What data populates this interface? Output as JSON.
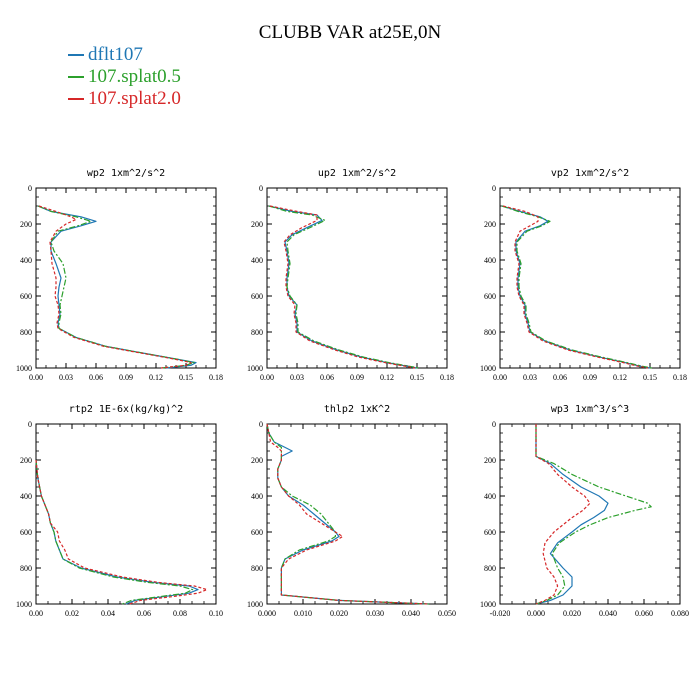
{
  "figure": {
    "title": "CLUBB VAR at25E,0N"
  },
  "legend": [
    {
      "name": "dflt107",
      "color": "#1f77b4",
      "dash": "solid"
    },
    {
      "name": "107.splat0.5",
      "color": "#2ca02c",
      "dash": "dashdot"
    },
    {
      "name": "107.splat2.0",
      "color": "#d62728",
      "dash": "dashed"
    }
  ],
  "chart_data": [
    {
      "type": "line",
      "title": "wp2  1xm^2/s^2",
      "xlim": [
        0,
        0.18
      ],
      "ylim": [
        1000,
        0
      ],
      "xticks": [
        "0.00",
        "0.03",
        "0.06",
        "0.09",
        "0.12",
        "0.15",
        "0.18"
      ],
      "yticks": [
        "0",
        "200",
        "400",
        "600",
        "800",
        "1000"
      ],
      "series": [
        {
          "y": [
            100,
            130,
            160,
            185,
            210,
            240,
            300,
            350,
            420,
            500,
            550,
            600,
            650,
            700,
            750,
            780,
            830,
            880,
            920,
            950,
            970,
            985,
            1000
          ],
          "x": [
            0.002,
            0.015,
            0.045,
            0.06,
            0.045,
            0.025,
            0.015,
            0.015,
            0.02,
            0.025,
            0.023,
            0.022,
            0.023,
            0.024,
            0.022,
            0.023,
            0.04,
            0.07,
            0.11,
            0.14,
            0.16,
            0.155,
            0.13
          ]
        },
        {
          "y": [
            100,
            130,
            160,
            185,
            210,
            240,
            300,
            350,
            420,
            500,
            550,
            600,
            650,
            700,
            750,
            780,
            830,
            880,
            920,
            950,
            970,
            985,
            1000
          ],
          "x": [
            0.002,
            0.015,
            0.04,
            0.055,
            0.042,
            0.022,
            0.015,
            0.018,
            0.027,
            0.03,
            0.028,
            0.026,
            0.024,
            0.025,
            0.023,
            0.023,
            0.04,
            0.07,
            0.11,
            0.14,
            0.158,
            0.15,
            0.125
          ]
        },
        {
          "y": [
            100,
            130,
            160,
            175,
            200,
            240,
            300,
            350,
            420,
            500,
            550,
            600,
            650,
            700,
            750,
            780,
            830,
            880,
            920,
            950,
            970,
            985,
            1000
          ],
          "x": [
            0.003,
            0.02,
            0.035,
            0.04,
            0.03,
            0.02,
            0.014,
            0.015,
            0.016,
            0.02,
            0.02,
            0.019,
            0.022,
            0.023,
            0.021,
            0.022,
            0.038,
            0.068,
            0.108,
            0.138,
            0.155,
            0.15,
            0.125
          ]
        }
      ]
    },
    {
      "type": "line",
      "title": "up2  1xm^2/s^2",
      "xlim": [
        0,
        0.18
      ],
      "ylim": [
        1000,
        0
      ],
      "xticks": [
        "0.00",
        "0.03",
        "0.06",
        "0.09",
        "0.12",
        "0.15",
        "0.18"
      ],
      "yticks": [
        "0",
        "200",
        "400",
        "600",
        "800",
        "1000"
      ],
      "series": [
        {
          "y": [
            100,
            130,
            150,
            180,
            220,
            260,
            300,
            350,
            420,
            500,
            550,
            600,
            650,
            700,
            750,
            800,
            850,
            900,
            940,
            970,
            990,
            1000
          ],
          "x": [
            0.002,
            0.025,
            0.05,
            0.055,
            0.04,
            0.025,
            0.018,
            0.02,
            0.022,
            0.02,
            0.02,
            0.022,
            0.03,
            0.028,
            0.03,
            0.03,
            0.045,
            0.07,
            0.095,
            0.12,
            0.14,
            0.15
          ]
        },
        {
          "y": [
            100,
            130,
            150,
            180,
            220,
            260,
            300,
            350,
            420,
            500,
            550,
            600,
            650,
            700,
            750,
            800,
            850,
            900,
            940,
            970,
            990,
            1000
          ],
          "x": [
            0.002,
            0.02,
            0.045,
            0.058,
            0.043,
            0.027,
            0.02,
            0.021,
            0.023,
            0.021,
            0.02,
            0.023,
            0.03,
            0.029,
            0.031,
            0.031,
            0.047,
            0.072,
            0.097,
            0.122,
            0.142,
            0.152
          ]
        },
        {
          "y": [
            100,
            130,
            150,
            180,
            220,
            260,
            300,
            350,
            420,
            500,
            550,
            600,
            650,
            700,
            750,
            800,
            850,
            900,
            940,
            970,
            990,
            1000
          ],
          "x": [
            0.003,
            0.03,
            0.05,
            0.05,
            0.035,
            0.023,
            0.017,
            0.019,
            0.021,
            0.019,
            0.019,
            0.021,
            0.028,
            0.027,
            0.029,
            0.029,
            0.043,
            0.068,
            0.092,
            0.118,
            0.138,
            0.148
          ]
        }
      ]
    },
    {
      "type": "line",
      "title": "vp2  1xm^2/s^2",
      "xlim": [
        0,
        0.18
      ],
      "ylim": [
        1000,
        0
      ],
      "xticks": [
        "0.00",
        "0.03",
        "0.06",
        "0.09",
        "0.12",
        "0.15",
        "0.18"
      ],
      "yticks": [
        "0",
        "200",
        "400",
        "600",
        "800",
        "1000"
      ],
      "series": [
        {
          "y": [
            100,
            130,
            160,
            185,
            210,
            240,
            300,
            350,
            420,
            500,
            550,
            600,
            650,
            700,
            750,
            800,
            850,
            900,
            940,
            970,
            990,
            1000
          ],
          "x": [
            0.002,
            0.02,
            0.04,
            0.048,
            0.04,
            0.025,
            0.016,
            0.016,
            0.02,
            0.018,
            0.018,
            0.02,
            0.025,
            0.025,
            0.028,
            0.03,
            0.045,
            0.07,
            0.1,
            0.125,
            0.14,
            0.15
          ]
        },
        {
          "y": [
            100,
            130,
            160,
            185,
            210,
            240,
            300,
            350,
            420,
            500,
            550,
            600,
            650,
            700,
            750,
            800,
            850,
            900,
            940,
            970,
            990,
            1000
          ],
          "x": [
            0.002,
            0.018,
            0.038,
            0.05,
            0.042,
            0.027,
            0.017,
            0.017,
            0.021,
            0.019,
            0.019,
            0.021,
            0.026,
            0.026,
            0.029,
            0.031,
            0.046,
            0.072,
            0.102,
            0.127,
            0.142,
            0.152
          ]
        },
        {
          "y": [
            100,
            130,
            160,
            185,
            210,
            240,
            300,
            350,
            420,
            500,
            550,
            600,
            650,
            700,
            750,
            800,
            850,
            900,
            940,
            970,
            990,
            1000
          ],
          "x": [
            0.003,
            0.025,
            0.038,
            0.038,
            0.03,
            0.02,
            0.015,
            0.015,
            0.019,
            0.017,
            0.017,
            0.019,
            0.024,
            0.024,
            0.027,
            0.029,
            0.043,
            0.068,
            0.098,
            0.123,
            0.138,
            0.148
          ]
        }
      ]
    },
    {
      "type": "line",
      "title": "rtp2  1E-6x(kg/kg)^2",
      "xlim": [
        0,
        0.1
      ],
      "ylim": [
        1000,
        0
      ],
      "xticks": [
        "0.00",
        "0.02",
        "0.04",
        "0.06",
        "0.08",
        "0.10"
      ],
      "yticks": [
        "0",
        "200",
        "400",
        "600",
        "800",
        "1000"
      ],
      "series": [
        {
          "y": [
            200,
            300,
            400,
            450,
            500,
            550,
            600,
            650,
            700,
            750,
            800,
            850,
            880,
            900,
            920,
            940,
            960,
            980,
            1000
          ],
          "x": [
            0.0,
            0.001,
            0.003,
            0.005,
            0.007,
            0.008,
            0.01,
            0.011,
            0.013,
            0.015,
            0.025,
            0.045,
            0.065,
            0.085,
            0.09,
            0.085,
            0.07,
            0.055,
            0.05
          ]
        },
        {
          "y": [
            200,
            300,
            400,
            450,
            500,
            550,
            600,
            650,
            700,
            750,
            800,
            850,
            880,
            900,
            920,
            940,
            960,
            980,
            1000
          ],
          "x": [
            0.0,
            0.001,
            0.003,
            0.005,
            0.007,
            0.008,
            0.01,
            0.011,
            0.013,
            0.015,
            0.024,
            0.043,
            0.062,
            0.08,
            0.087,
            0.083,
            0.068,
            0.053,
            0.048
          ]
        },
        {
          "y": [
            200,
            300,
            400,
            450,
            500,
            550,
            600,
            650,
            700,
            750,
            800,
            850,
            880,
            900,
            920,
            940,
            960,
            980,
            1000
          ],
          "x": [
            0.0,
            0.001,
            0.003,
            0.005,
            0.007,
            0.008,
            0.012,
            0.013,
            0.016,
            0.018,
            0.027,
            0.048,
            0.068,
            0.088,
            0.095,
            0.09,
            0.075,
            0.058,
            0.052
          ]
        }
      ]
    },
    {
      "type": "line",
      "title": "thlp2  1xK^2",
      "xlim": [
        0,
        0.05
      ],
      "ylim": [
        1000,
        0
      ],
      "xticks": [
        "0.000",
        "0.010",
        "0.020",
        "0.030",
        "0.040",
        "0.050"
      ],
      "yticks": [
        "0",
        "200",
        "400",
        "600",
        "800",
        "1000"
      ],
      "series": [
        {
          "y": [
            0,
            50,
            100,
            130,
            150,
            180,
            200,
            250,
            300,
            350,
            400,
            450,
            500,
            550,
            600,
            625,
            650,
            700,
            750,
            800,
            850,
            900,
            950,
            980,
            1000
          ],
          "x": [
            0.0,
            0.0005,
            0.002,
            0.005,
            0.007,
            0.004,
            0.004,
            0.003,
            0.003,
            0.004,
            0.006,
            0.01,
            0.013,
            0.016,
            0.019,
            0.02,
            0.018,
            0.01,
            0.005,
            0.004,
            0.004,
            0.004,
            0.004,
            0.02,
            0.045
          ]
        },
        {
          "y": [
            0,
            50,
            100,
            130,
            150,
            180,
            200,
            250,
            300,
            350,
            400,
            450,
            500,
            550,
            600,
            625,
            650,
            700,
            750,
            800,
            850,
            900,
            950,
            980,
            1000
          ],
          "x": [
            0.0,
            0.0005,
            0.002,
            0.004,
            0.004,
            0.004,
            0.004,
            0.003,
            0.003,
            0.004,
            0.007,
            0.012,
            0.015,
            0.017,
            0.019,
            0.019,
            0.017,
            0.009,
            0.005,
            0.004,
            0.004,
            0.004,
            0.004,
            0.02,
            0.045
          ]
        },
        {
          "y": [
            0,
            50,
            100,
            130,
            150,
            180,
            200,
            250,
            300,
            350,
            400,
            450,
            500,
            550,
            600,
            625,
            650,
            700,
            750,
            800,
            850,
            900,
            950,
            980,
            1000
          ],
          "x": [
            0.0,
            0.0005,
            0.001,
            0.003,
            0.004,
            0.004,
            0.004,
            0.003,
            0.003,
            0.004,
            0.006,
            0.009,
            0.011,
            0.015,
            0.019,
            0.021,
            0.019,
            0.011,
            0.006,
            0.004,
            0.004,
            0.004,
            0.004,
            0.02,
            0.045
          ]
        }
      ]
    },
    {
      "type": "line",
      "title": "wp3  1xm^3/s^3",
      "xlim": [
        -0.02,
        0.08
      ],
      "ylim": [
        1000,
        0
      ],
      "xticks": [
        "-0.020",
        "0.000",
        "0.020",
        "0.040",
        "0.060",
        "0.080"
      ],
      "yticks": [
        "0",
        "200",
        "400",
        "600",
        "800",
        "1000"
      ],
      "series": [
        {
          "y": [
            0,
            100,
            180,
            220,
            280,
            350,
            400,
            440,
            480,
            520,
            560,
            600,
            660,
            720,
            800,
            850,
            900,
            950,
            980,
            1000
          ],
          "x": [
            0.0,
            0.0,
            0.0,
            0.008,
            0.015,
            0.025,
            0.035,
            0.04,
            0.038,
            0.032,
            0.025,
            0.02,
            0.012,
            0.008,
            0.015,
            0.02,
            0.02,
            0.015,
            0.008,
            0.0
          ]
        },
        {
          "y": [
            0,
            100,
            180,
            220,
            280,
            350,
            400,
            440,
            460,
            480,
            520,
            560,
            600,
            660,
            720,
            800,
            850,
            900,
            950,
            980,
            1000
          ],
          "x": [
            0.0,
            0.0,
            0.0,
            0.01,
            0.02,
            0.035,
            0.05,
            0.062,
            0.064,
            0.055,
            0.04,
            0.03,
            0.022,
            0.013,
            0.009,
            0.012,
            0.015,
            0.016,
            0.012,
            0.006,
            0.0
          ]
        },
        {
          "y": [
            0,
            100,
            180,
            220,
            280,
            350,
            400,
            440,
            480,
            520,
            560,
            600,
            660,
            720,
            800,
            850,
            900,
            950,
            980,
            1000
          ],
          "x": [
            0.0,
            0.0,
            0.0,
            0.007,
            0.012,
            0.02,
            0.027,
            0.03,
            0.026,
            0.02,
            0.015,
            0.01,
            0.005,
            0.004,
            0.006,
            0.01,
            0.012,
            0.01,
            0.005,
            0.0
          ]
        }
      ]
    }
  ]
}
